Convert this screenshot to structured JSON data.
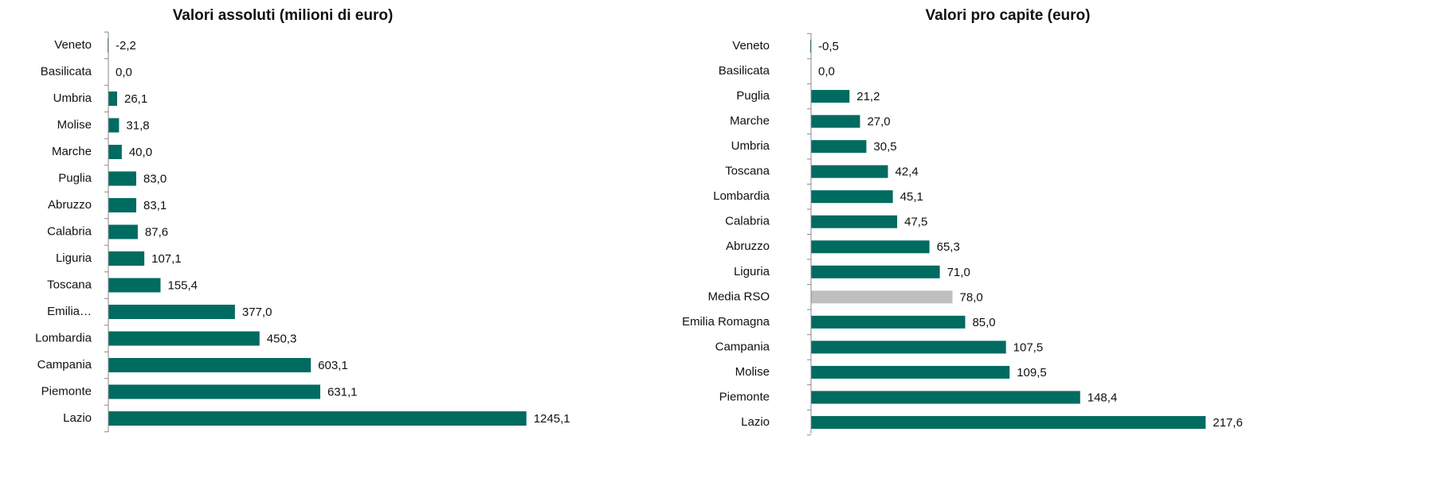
{
  "chart_data": [
    {
      "type": "barh",
      "title": "Valori assoluti (milioni di euro)",
      "categories": [
        "Veneto",
        "Basilicata",
        "Umbria",
        "Molise",
        "Marche",
        "Puglia",
        "Abruzzo",
        "Calabria",
        "Liguria",
        "Toscana",
        "Emilia…",
        "Lombardia",
        "Campania",
        "Piemonte",
        "Lazio"
      ],
      "values": [
        -2.2,
        0.0,
        26.1,
        31.8,
        40.0,
        83.0,
        83.1,
        87.6,
        107.1,
        155.4,
        377.0,
        450.3,
        603.1,
        631.1,
        1245.1
      ],
      "value_labels": [
        "-2,2",
        "0,0",
        "26,1",
        "31,8",
        "40,0",
        "83,0",
        "83,1",
        "87,6",
        "107,1",
        "155,4",
        "377,0",
        "450,3",
        "603,1",
        "631,1",
        "1245,1"
      ],
      "colors": [
        "#006b61",
        "#006b61",
        "#006b61",
        "#006b61",
        "#006b61",
        "#006b61",
        "#006b61",
        "#006b61",
        "#006b61",
        "#006b61",
        "#006b61",
        "#006b61",
        "#006b61",
        "#006b61",
        "#006b61"
      ],
      "xlim": [
        0,
        1400
      ]
    },
    {
      "type": "barh",
      "title": "Valori pro capite (euro)",
      "categories": [
        "Veneto",
        "Basilicata",
        "Puglia",
        "Marche",
        "Umbria",
        "Toscana",
        "Lombardia",
        "Calabria",
        "Abruzzo",
        "Liguria",
        "Media RSO",
        "Emilia Romagna",
        "Campania",
        "Molise",
        "Piemonte",
        "Lazio"
      ],
      "values": [
        -0.5,
        0.0,
        21.2,
        27.0,
        30.5,
        42.4,
        45.1,
        47.5,
        65.3,
        71.0,
        78.0,
        85.0,
        107.5,
        109.5,
        148.4,
        217.6
      ],
      "value_labels": [
        "-0,5",
        "0,0",
        "21,2",
        "27,0",
        "30,5",
        "42,4",
        "45,1",
        "47,5",
        "65,3",
        "71,0",
        "78,0",
        "85,0",
        "107,5",
        "109,5",
        "148,4",
        "217,6"
      ],
      "colors": [
        "#006b61",
        "#006b61",
        "#006b61",
        "#006b61",
        "#006b61",
        "#006b61",
        "#006b61",
        "#006b61",
        "#006b61",
        "#006b61",
        "#bfbfbf",
        "#006b61",
        "#006b61",
        "#006b61",
        "#006b61",
        "#006b61"
      ],
      "xlim": [
        0,
        250
      ]
    }
  ]
}
